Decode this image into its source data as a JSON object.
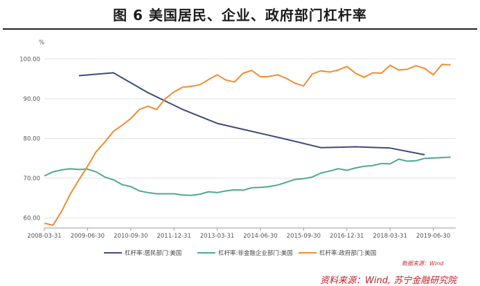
{
  "page_title": "图 6  美国居民、企业、政府部门杠杆率",
  "source_small": "数据来源：Wind",
  "source_footer": "资料来源：Wind, 苏宁金融研究院",
  "colors": {
    "household": "#3b4a7a",
    "corporate": "#4aa98f",
    "government": "#f28a30"
  },
  "chart_data": {
    "type": "line",
    "title": "图 6  美国居民、企业、政府部门杠杆率",
    "ylabel": "%",
    "ylim": [
      57.5,
      103
    ],
    "yticks": [
      60.0,
      70.0,
      80.0,
      90.0,
      100.0
    ],
    "ytick_labels": [
      "60.00",
      "70.00",
      "80.00",
      "90.00",
      "100.00"
    ],
    "x_range": [
      2008.0,
      2019.9
    ],
    "xtick_labels": [
      "2008-03-31",
      "2009-06-30",
      "2010-09-30",
      "2011-12-31",
      "2013-03-31",
      "2014-06-30",
      "2015-09-30",
      "2016-12-31",
      "2018-03-31",
      "2019-06-30"
    ],
    "xtick_values": [
      2008.0,
      2009.25,
      2010.5,
      2011.75,
      2013.0,
      2014.25,
      2015.5,
      2016.75,
      2018.0,
      2019.25
    ],
    "series": [
      {
        "name": "杠杆率:居民部门:美国",
        "color_key": "household",
        "x": [
          2009.0,
          2010.0,
          2011.0,
          2012.0,
          2013.0,
          2014.0,
          2015.0,
          2016.0,
          2017.0,
          2018.0,
          2019.0
        ],
        "values": [
          95.8,
          96.5,
          91.5,
          87.3,
          83.8,
          81.8,
          79.8,
          77.7,
          77.9,
          77.6,
          75.9
        ]
      },
      {
        "name": "杠杆率:非金融企业部门:美国",
        "color_key": "corporate",
        "x": [
          2008.0,
          2008.25,
          2008.5,
          2008.75,
          2009.0,
          2009.25,
          2009.5,
          2009.75,
          2010.0,
          2010.25,
          2010.5,
          2010.75,
          2011.0,
          2011.25,
          2011.5,
          2011.75,
          2012.0,
          2012.25,
          2012.5,
          2012.75,
          2013.0,
          2013.25,
          2013.5,
          2013.75,
          2014.0,
          2014.25,
          2014.5,
          2014.75,
          2015.0,
          2015.25,
          2015.5,
          2015.75,
          2016.0,
          2016.25,
          2016.5,
          2016.75,
          2017.0,
          2017.25,
          2017.5,
          2017.75,
          2018.0,
          2018.25,
          2018.5,
          2018.75,
          2019.0,
          2019.25,
          2019.5,
          2019.75
        ],
        "values": [
          70.6,
          71.6,
          72.1,
          72.4,
          72.2,
          72.3,
          71.6,
          70.3,
          69.6,
          68.4,
          67.9,
          66.8,
          66.4,
          66.1,
          66.1,
          66.1,
          65.8,
          65.7,
          66.0,
          66.6,
          66.4,
          66.8,
          67.1,
          67.0,
          67.6,
          67.7,
          67.9,
          68.3,
          69.0,
          69.7,
          69.9,
          70.3,
          71.3,
          71.8,
          72.4,
          72.0,
          72.6,
          73.0,
          73.2,
          73.7,
          73.6,
          74.8,
          74.3,
          74.4,
          75.0,
          75.1,
          75.2,
          75.3
        ]
      },
      {
        "name": "杠杆率:政府部门:美国",
        "color_key": "government",
        "x": [
          2008.0,
          2008.25,
          2008.5,
          2008.75,
          2009.0,
          2009.25,
          2009.5,
          2009.75,
          2010.0,
          2010.25,
          2010.5,
          2010.75,
          2011.0,
          2011.25,
          2011.5,
          2011.75,
          2012.0,
          2012.25,
          2012.5,
          2012.75,
          2013.0,
          2013.25,
          2013.5,
          2013.75,
          2014.0,
          2014.25,
          2014.5,
          2014.75,
          2015.0,
          2015.25,
          2015.5,
          2015.75,
          2016.0,
          2016.25,
          2016.5,
          2016.75,
          2017.0,
          2017.25,
          2017.5,
          2017.75,
          2018.0,
          2018.25,
          2018.5,
          2018.75,
          2019.0,
          2019.25,
          2019.5,
          2019.75
        ],
        "values": [
          58.7,
          58.2,
          61.7,
          66.0,
          69.6,
          73.0,
          76.7,
          79.1,
          81.8,
          83.3,
          85.0,
          87.3,
          88.1,
          87.3,
          90.0,
          91.7,
          92.9,
          93.1,
          93.5,
          94.8,
          96.0,
          94.7,
          94.2,
          96.4,
          97.1,
          95.5,
          95.6,
          96.0,
          95.1,
          93.9,
          93.2,
          96.2,
          97.0,
          96.7,
          97.2,
          98.1,
          96.4,
          95.4,
          96.5,
          96.4,
          98.4,
          97.2,
          97.4,
          98.3,
          97.6,
          96.0,
          98.6,
          98.5
        ]
      }
    ]
  }
}
